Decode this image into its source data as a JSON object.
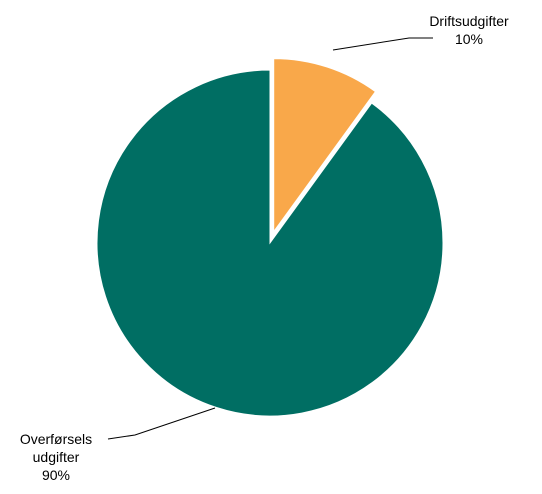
{
  "chart_data": {
    "type": "pie",
    "slices": [
      {
        "label_lines": [
          "Driftsudgifter",
          "10%"
        ],
        "value": 10,
        "color": "#F9A84A",
        "exploded": true
      },
      {
        "label_lines": [
          "Overførsels",
          "udgifter",
          "90%"
        ],
        "value": 90,
        "color": "#006E63",
        "exploded": false
      }
    ],
    "start_angle_deg": 0,
    "direction": "clockwise",
    "legend": "none",
    "label_style": "outside-with-leader-lines",
    "background": "#FFFFFF"
  }
}
